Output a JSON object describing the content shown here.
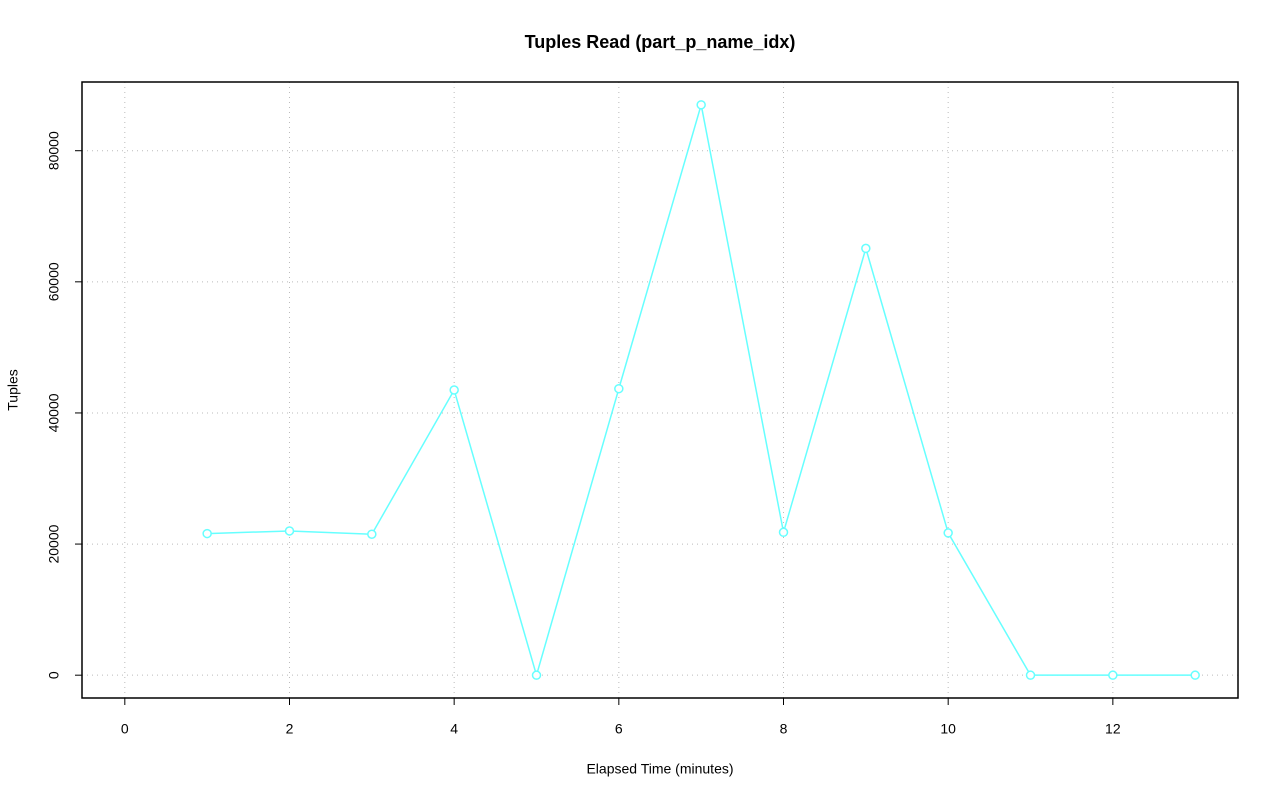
{
  "chart_data": {
    "type": "line",
    "title": "Tuples Read (part_p_name_idx)",
    "x_label": "Elapsed Time (minutes)",
    "y_label": "Tuples",
    "x": [
      1,
      2,
      3,
      4,
      5,
      6,
      7,
      8,
      9,
      10,
      11,
      12,
      13
    ],
    "series": [
      {
        "name": "part_p_name_idx",
        "color": "#66ffff",
        "values": [
          21600,
          22000,
          21500,
          43500,
          0,
          43700,
          87000,
          21800,
          65100,
          21700,
          0,
          0,
          0
        ]
      }
    ],
    "xlim": [
      -0.52,
      13.52
    ],
    "ylim": [
      -3480,
      90480
    ],
    "xticks": [
      0,
      2,
      4,
      6,
      8,
      10,
      12
    ],
    "yticks": [
      0,
      20000,
      40000,
      60000,
      80000
    ],
    "grid": true
  }
}
